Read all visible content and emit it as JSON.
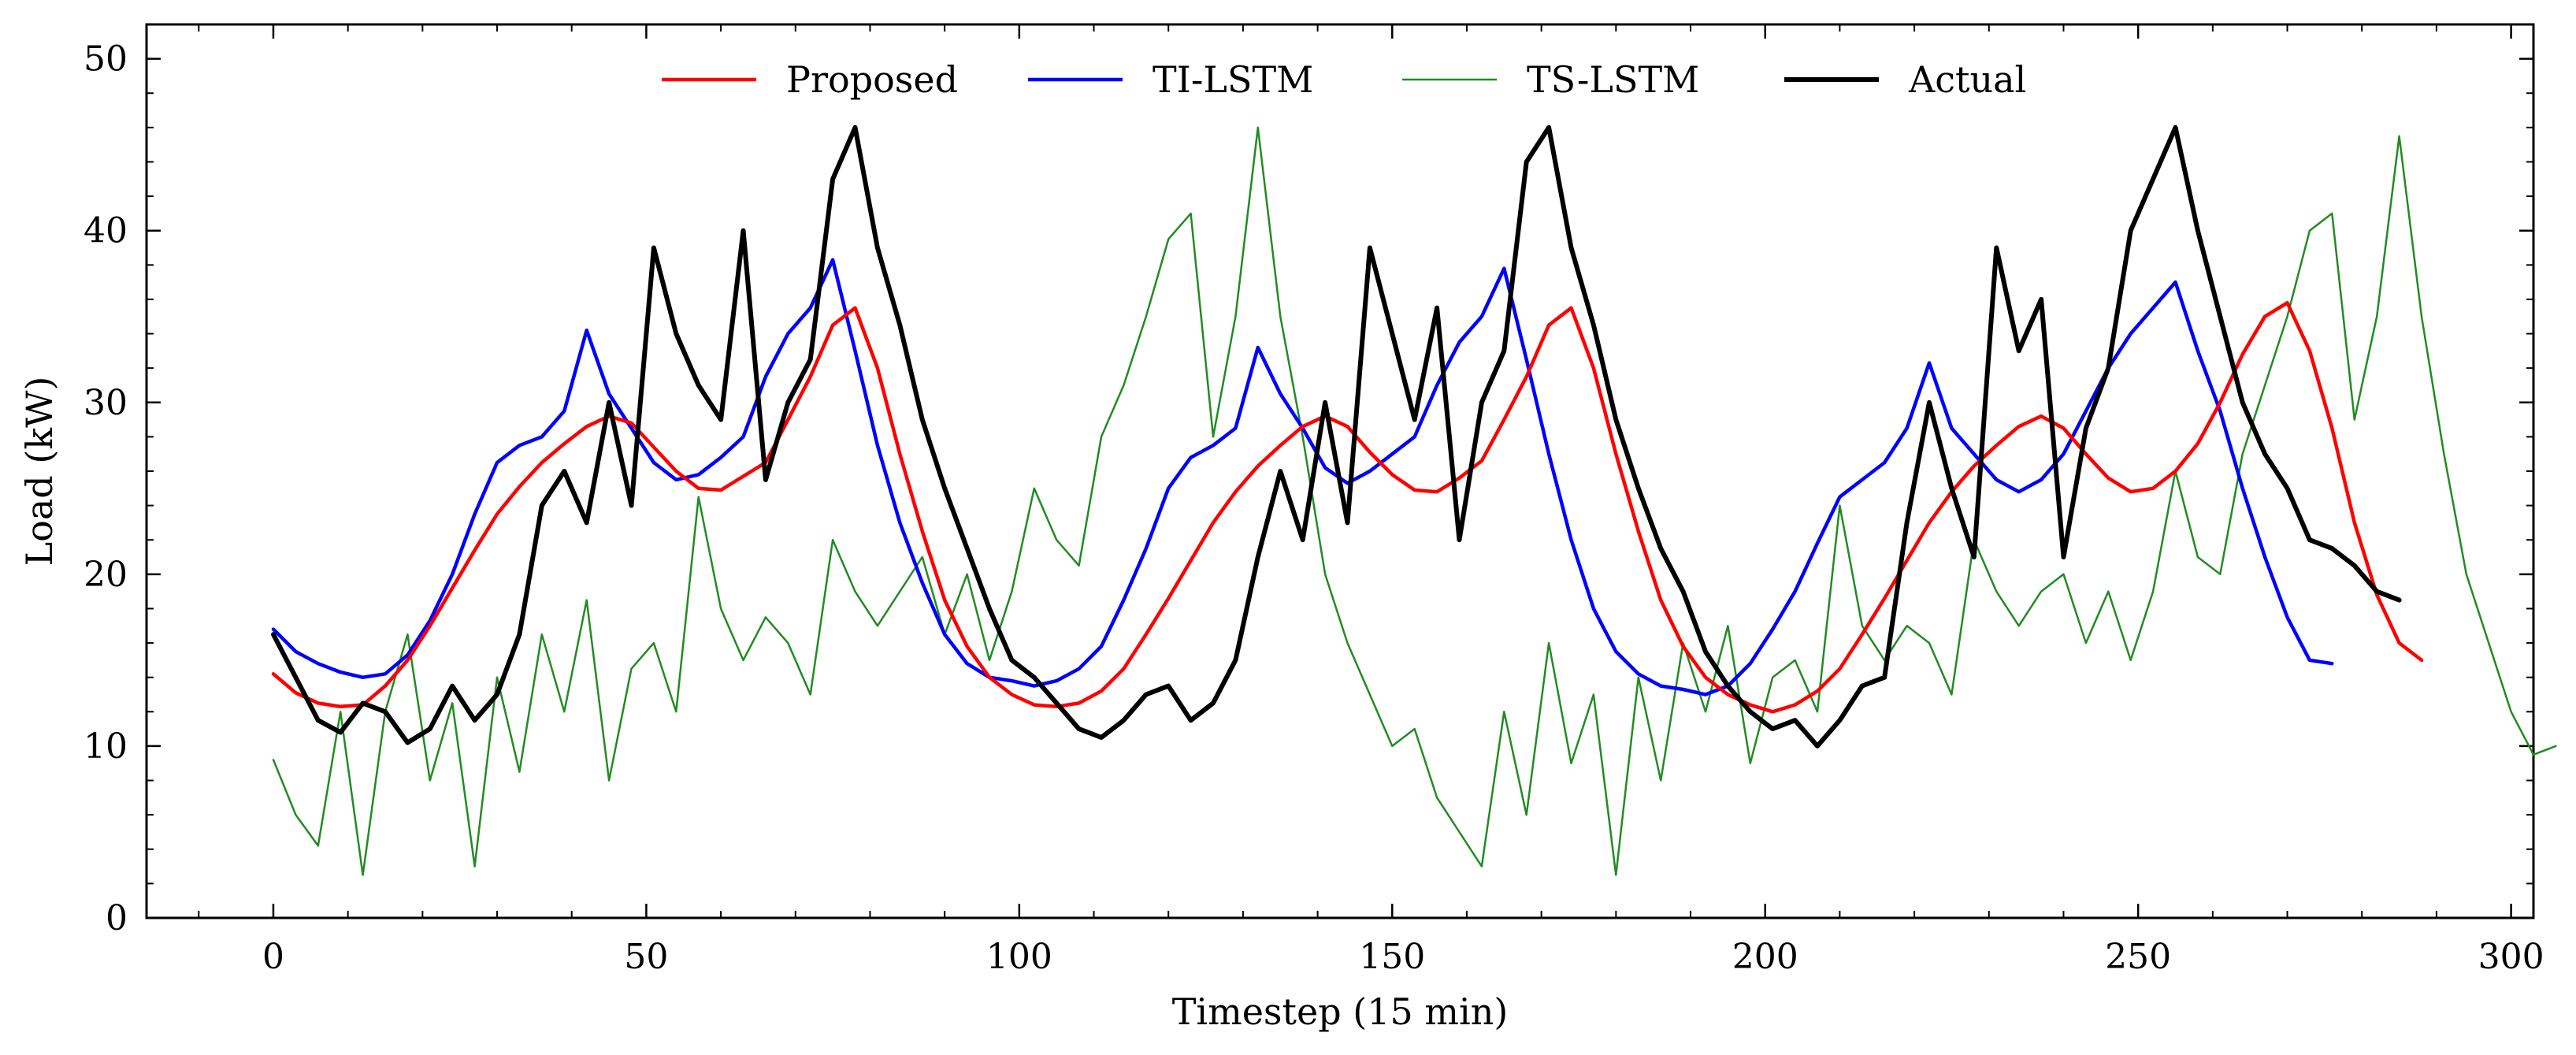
{
  "chart_data": {
    "type": "line",
    "title": "",
    "xlabel": "Timestep (15 min)",
    "ylabel": "Load (kW)",
    "xlim": [
      -17,
      303
    ],
    "ylim": [
      0,
      52
    ],
    "x_ticks": [
      0,
      50,
      100,
      150,
      200,
      250,
      300
    ],
    "y_ticks": [
      0,
      10,
      20,
      30,
      40,
      50
    ],
    "legend_position": "top-center",
    "grid": false,
    "x_step": 3,
    "series": [
      {
        "name": "Proposed",
        "color": "#ff0000",
        "line_width": 4.5,
        "values": [
          14.2,
          13.1,
          12.5,
          12.3,
          12.4,
          13.5,
          15.0,
          17.0,
          19.2,
          21.4,
          23.5,
          25.1,
          26.5,
          27.6,
          28.6,
          29.2,
          28.8,
          27.4,
          26.0,
          25.0,
          24.9,
          25.7,
          26.5,
          29.0,
          31.5,
          34.5,
          35.5,
          32.0,
          27.0,
          22.5,
          18.5,
          15.8,
          14.0,
          13.0,
          12.4,
          12.3,
          12.5,
          13.2,
          14.5,
          16.5,
          18.6,
          20.8,
          23.0,
          24.8,
          26.3,
          27.5,
          28.6,
          29.2,
          28.6,
          27.1,
          25.8,
          24.9,
          24.8,
          25.6,
          26.6,
          29.0,
          31.5,
          34.5,
          35.5,
          32.0,
          27.0,
          22.5,
          18.5,
          15.8,
          14.0,
          13.0,
          12.4,
          12.0,
          12.4,
          13.2,
          14.5,
          16.5,
          18.6,
          20.8,
          23.0,
          24.8,
          26.3,
          27.5,
          28.6,
          29.2,
          28.5,
          27.0,
          25.6,
          24.8,
          25.0,
          26.0,
          27.6,
          30.0,
          32.8,
          35.0,
          35.8,
          33.0,
          28.5,
          23.0,
          18.8,
          16.0,
          15.0
        ]
      },
      {
        "name": "TI-LSTM",
        "color": "#0000ff",
        "line_width": 4.5,
        "values": [
          16.8,
          15.5,
          14.8,
          14.3,
          14.0,
          14.2,
          15.3,
          17.3,
          20.0,
          23.5,
          26.5,
          27.5,
          28.0,
          29.5,
          34.2,
          30.5,
          28.5,
          26.5,
          25.5,
          25.8,
          26.8,
          28.0,
          31.5,
          34.0,
          35.5,
          38.3,
          33.0,
          27.5,
          23.0,
          19.5,
          16.5,
          14.8,
          14.0,
          13.8,
          13.5,
          13.8,
          14.5,
          15.8,
          18.5,
          21.5,
          25.0,
          26.8,
          27.5,
          28.5,
          33.2,
          30.5,
          28.5,
          26.2,
          25.3,
          26.0,
          27.0,
          28.0,
          31.0,
          33.5,
          35.0,
          37.8,
          32.5,
          27.0,
          22.0,
          18.0,
          15.5,
          14.2,
          13.5,
          13.3,
          13.0,
          13.5,
          14.8,
          16.8,
          19.0,
          21.8,
          24.5,
          25.5,
          26.5,
          28.5,
          32.3,
          28.5,
          27.0,
          25.5,
          24.8,
          25.5,
          27.0,
          29.5,
          32.0,
          34.0,
          35.5,
          37.0,
          33.0,
          29.5,
          25.0,
          21.0,
          17.5,
          15.0,
          14.8
        ]
      },
      {
        "name": "TS-LSTM",
        "color": "#228b22",
        "line_width": 2.5,
        "values": [
          9.2,
          6.0,
          4.2,
          12.0,
          2.5,
          12.0,
          16.5,
          8.0,
          12.5,
          3.0,
          14.0,
          8.5,
          16.5,
          12.0,
          18.5,
          8.0,
          14.5,
          16.0,
          12.0,
          24.5,
          18.0,
          15.0,
          17.5,
          16.0,
          13.0,
          22.0,
          19.0,
          17.0,
          19.0,
          21.0,
          16.5,
          20.0,
          15.0,
          19.0,
          25.0,
          22.0,
          20.5,
          28.0,
          31.0,
          35.0,
          39.5,
          41.0,
          28.0,
          35.0,
          46.0,
          35.0,
          28.0,
          20.0,
          16.0,
          13.0,
          10.0,
          11.0,
          7.0,
          5.0,
          3.0,
          12.0,
          6.0,
          16.0,
          9.0,
          13.0,
          2.5,
          14.0,
          8.0,
          16.0,
          12.0,
          17.0,
          9.0,
          14.0,
          15.0,
          12.0,
          24.0,
          17.0,
          15.0,
          17.0,
          16.0,
          13.0,
          22.0,
          19.0,
          17.0,
          19.0,
          20.0,
          16.0,
          19.0,
          15.0,
          19.0,
          26.0,
          21.0,
          20.0,
          27.0,
          31.0,
          35.0,
          40.0,
          41.0,
          29.0,
          35.0,
          45.5,
          35.0,
          27.0,
          20.0,
          16.0,
          12.0,
          9.5,
          10.0
        ]
      },
      {
        "name": "Actual",
        "color": "#000000",
        "line_width": 6,
        "values": [
          16.5,
          14.0,
          11.5,
          10.8,
          12.5,
          12.0,
          10.2,
          11.0,
          13.5,
          11.5,
          13.0,
          16.5,
          24.0,
          26.0,
          23.0,
          30.0,
          24.0,
          39.0,
          34.0,
          31.0,
          29.0,
          40.0,
          25.5,
          30.0,
          32.5,
          43.0,
          46.0,
          39.0,
          34.5,
          29.0,
          25.0,
          21.5,
          18.0,
          15.0,
          14.0,
          12.5,
          11.0,
          10.5,
          11.5,
          13.0,
          13.5,
          11.5,
          12.5,
          15.0,
          21.0,
          26.0,
          22.0,
          30.0,
          23.0,
          39.0,
          34.0,
          29.0,
          35.5,
          22.0,
          30.0,
          33.0,
          44.0,
          46.0,
          39.0,
          34.5,
          29.0,
          25.0,
          21.5,
          19.0,
          15.5,
          13.5,
          12.0,
          11.0,
          11.5,
          10.0,
          11.5,
          13.5,
          14.0,
          23.0,
          30.0,
          25.0,
          21.0,
          39.0,
          33.0,
          36.0,
          21.0,
          28.5,
          32.0,
          40.0,
          43.0,
          46.0,
          40.0,
          35.0,
          30.0,
          27.0,
          25.0,
          22.0,
          21.5,
          20.5,
          19.0,
          18.5
        ]
      }
    ]
  }
}
